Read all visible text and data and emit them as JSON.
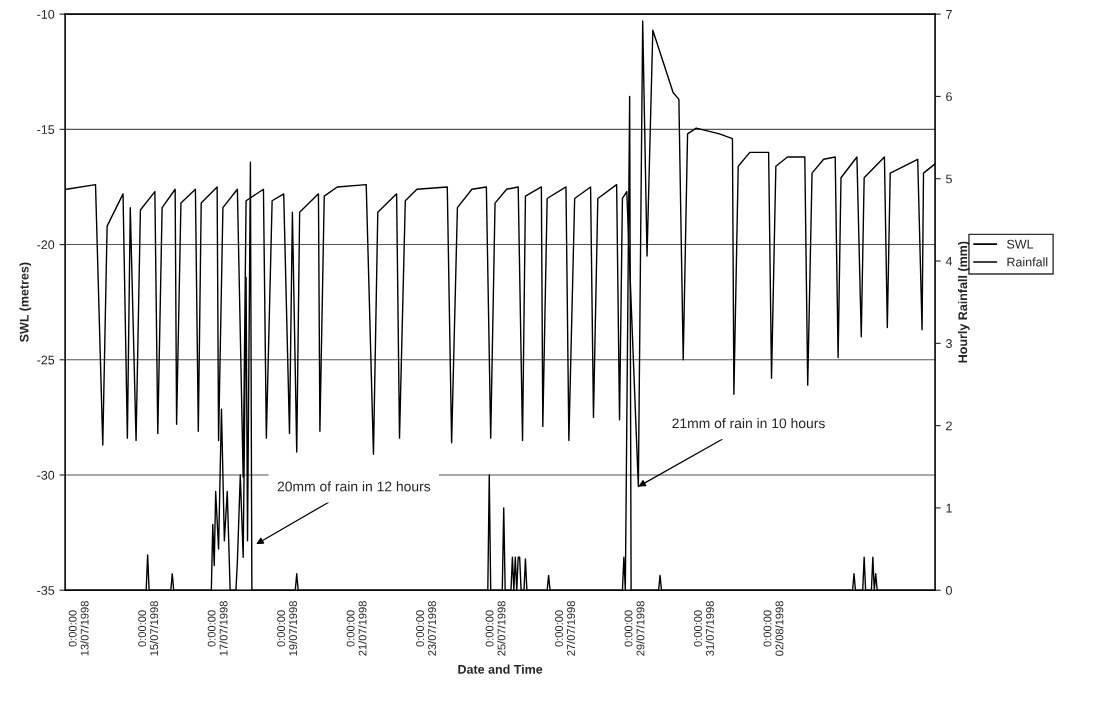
{
  "chart_data": {
    "type": "line",
    "xlabel": "Date and Time",
    "ylabel": "SWL (metres)",
    "y2label": "Hourly Rainfall (mm)",
    "xlim": [
      "1998-07-12T14:00",
      "1998-08-06T15:00"
    ],
    "xticks": [
      {
        "value": "1998-07-13",
        "label": "0:00:00\n13/07/1998"
      },
      {
        "value": "1998-07-15",
        "label": "0:00:00\n15/07/1998"
      },
      {
        "value": "1998-07-17",
        "label": "0:00:00\n17/07/1998"
      },
      {
        "value": "1998-07-19",
        "label": "0:00:00\n19/07/1998"
      },
      {
        "value": "1998-07-21",
        "label": "0:00:00\n21/07/1998"
      },
      {
        "value": "1998-07-23",
        "label": "0:00:00\n23/07/1998"
      },
      {
        "value": "1998-07-25",
        "label": "0:00:00\n25/07/1998"
      },
      {
        "value": "1998-07-27",
        "label": "0:00:00\n27/07/1998"
      },
      {
        "value": "1998-07-29",
        "label": "0:00:00\n29/07/1998"
      },
      {
        "value": "1998-07-31",
        "label": "0:00:00\n31/07/1998"
      },
      {
        "value": "1998-08-02",
        "label": "0:00:00\n02/08/1998"
      }
    ],
    "ylim": [
      -35,
      -10
    ],
    "yticks": [
      -35,
      -30,
      -25,
      -20,
      -15,
      -10
    ],
    "y2lim": [
      0,
      7
    ],
    "y2ticks": [
      0,
      1,
      2,
      3,
      4,
      5,
      6,
      7
    ],
    "grid": "y",
    "legend": "right",
    "line_style": "solid",
    "marker": "none",
    "series": [
      {
        "name": "SWL",
        "color": "#000000",
        "x": [
          "1998-07-12T15:00",
          "1998-07-13T11:00",
          "1998-07-13T16:00",
          "1998-07-13T19:00",
          "1998-07-14T06:00",
          "1998-07-14T09:00",
          "1998-07-14T11:00",
          "1998-07-14T15:00",
          "1998-07-14T18:00",
          "1998-07-15T04:00",
          "1998-07-15T06:00",
          "1998-07-15T09:00",
          "1998-07-15T18:00",
          "1998-07-15T19:00",
          "1998-07-15T22:00",
          "1998-07-16T08:00",
          "1998-07-16T10:00",
          "1998-07-16T12:00",
          "1998-07-16T23:00",
          "1998-07-17T00:00",
          "1998-07-17T03:00",
          "1998-07-17T13:00",
          "1998-07-17T17:00",
          "1998-07-17T19:00",
          "1998-07-18T07:00",
          "1998-07-18T09:00",
          "1998-07-18T13:00",
          "1998-07-18T21:00",
          "1998-07-19T01:00",
          "1998-07-19T03:00",
          "1998-07-19T06:00",
          "1998-07-19T08:00",
          "1998-07-19T21:00",
          "1998-07-19T22:00",
          "1998-07-20T01:00",
          "1998-07-20T10:00",
          "1998-07-21T06:00",
          "1998-07-21T11:00",
          "1998-07-21T14:00",
          "1998-07-22T03:00",
          "1998-07-22T05:00",
          "1998-07-22T09:00",
          "1998-07-22T17:00",
          "1998-07-23T14:00",
          "1998-07-23T17:00",
          "1998-07-23T21:00",
          "1998-07-24T07:00",
          "1998-07-24T17:00",
          "1998-07-24T20:00",
          "1998-07-24T23:00",
          "1998-07-25T07:00",
          "1998-07-25T15:00",
          "1998-07-25T18:00",
          "1998-07-25T20:00",
          "1998-07-26T07:00",
          "1998-07-26T08:00",
          "1998-07-26T11:00",
          "1998-07-27T00:00",
          "1998-07-27T02:00",
          "1998-07-27T06:00",
          "1998-07-27T17:00",
          "1998-07-27T19:00",
          "1998-07-27T22:00",
          "1998-07-28T11:00",
          "1998-07-28T13:00",
          "1998-07-28T15:00",
          "1998-07-28T18:00",
          "1998-07-29T02:00",
          "1998-07-29T05:00",
          "1998-07-29T08:00",
          "1998-07-29T12:00",
          "1998-07-30T02:00",
          "1998-07-30T06:00",
          "1998-07-30T09:00",
          "1998-07-30T12:00",
          "1998-07-30T18:00",
          "1998-07-31T10:00",
          "1998-07-31T19:00",
          "1998-07-31T20:00",
          "1998-07-31T23:00",
          "1998-08-01T07:00",
          "1998-08-01T20:00",
          "1998-08-01T22:00",
          "1998-08-02T01:00",
          "1998-08-02T09:00",
          "1998-08-02T21:00",
          "1998-08-02T23:00",
          "1998-08-03T02:00",
          "1998-08-03T10:00",
          "1998-08-03T18:00",
          "1998-08-03T20:00",
          "1998-08-03T22:00",
          "1998-08-04T09:00",
          "1998-08-04T12:00",
          "1998-08-04T14:00",
          "1998-08-05T04:00",
          "1998-08-05T06:00",
          "1998-08-05T08:00",
          "1998-08-06T03:00",
          "1998-08-06T06:00",
          "1998-08-06T07:00",
          "1998-08-06T15:00"
        ],
        "values": [
          -17.6,
          -17.4,
          -28.7,
          -19.2,
          -17.8,
          -28.4,
          -18.4,
          -28.5,
          -18.5,
          -17.7,
          -28.2,
          -18.4,
          -17.6,
          -27.8,
          -18.2,
          -17.6,
          -28.1,
          -18.2,
          -17.5,
          -28.5,
          -18.4,
          -17.6,
          -30.1,
          -18.1,
          -17.6,
          -28.4,
          -18.1,
          -17.8,
          -28.2,
          -18.6,
          -29.0,
          -18.6,
          -17.8,
          -28.1,
          -17.9,
          -17.5,
          -17.4,
          -29.1,
          -18.6,
          -17.8,
          -28.4,
          -18.1,
          -17.6,
          -17.5,
          -28.6,
          -18.4,
          -17.6,
          -17.5,
          -28.4,
          -18.2,
          -17.6,
          -17.5,
          -28.5,
          -17.9,
          -17.5,
          -27.9,
          -18.0,
          -17.5,
          -28.5,
          -18.0,
          -17.5,
          -27.5,
          -18.0,
          -17.4,
          -27.6,
          -18.0,
          -17.7,
          -30.5,
          -10.3,
          -20.5,
          -10.7,
          -13.4,
          -13.7,
          -25.0,
          -15.2,
          -14.95,
          -15.2,
          -15.4,
          -26.5,
          -16.6,
          -16.0,
          -16.0,
          -25.8,
          -16.6,
          -16.2,
          -16.2,
          -26.1,
          -16.9,
          -16.3,
          -16.2,
          -24.9,
          -17.1,
          -16.2,
          -24.0,
          -17.1,
          -16.2,
          -23.6,
          -16.9,
          -16.3,
          -23.7,
          -16.9,
          -16.5
        ]
      },
      {
        "name": "Rainfall",
        "color": "#000000",
        "axis": "y2",
        "x": [
          "1998-07-12T14:00",
          "1998-07-14T22:00",
          "1998-07-14T23:00",
          "1998-07-15T00:00",
          "1998-07-15T15:00",
          "1998-07-15T16:00",
          "1998-07-15T17:00",
          "1998-07-16T19:00",
          "1998-07-16T20:00",
          "1998-07-16T21:00",
          "1998-07-16T22:00",
          "1998-07-17T00:00",
          "1998-07-17T02:00",
          "1998-07-17T04:00",
          "1998-07-17T06:00",
          "1998-07-17T08:00",
          "1998-07-17T12:00",
          "1998-07-17T13:00",
          "1998-07-17T15:00",
          "1998-07-17T17:00",
          "1998-07-17T19:00",
          "1998-07-17T20:00",
          "1998-07-17T22:00",
          "1998-07-17T23:00",
          "1998-07-19T05:00",
          "1998-07-19T06:00",
          "1998-07-19T07:00",
          "1998-07-24T18:00",
          "1998-07-24T19:00",
          "1998-07-24T20:00",
          "1998-07-25T04:00",
          "1998-07-25T05:00",
          "1998-07-25T06:00",
          "1998-07-25T10:00",
          "1998-07-25T11:00",
          "1998-07-25T12:00",
          "1998-07-25T13:00",
          "1998-07-25T14:00",
          "1998-07-25T15:00",
          "1998-07-25T16:00",
          "1998-07-25T17:00",
          "1998-07-25T19:00",
          "1998-07-25T20:00",
          "1998-07-25T21:00",
          "1998-07-26T11:00",
          "1998-07-26T12:00",
          "1998-07-26T13:00",
          "1998-07-28T15:00",
          "1998-07-28T16:00",
          "1998-07-28T17:00",
          "1998-07-28T20:00",
          "1998-07-28T21:00",
          "1998-07-29T16:00",
          "1998-07-29T17:00",
          "1998-07-29T18:00",
          "1998-08-04T06:00",
          "1998-08-04T07:00",
          "1998-08-04T08:00",
          "1998-08-04T13:00",
          "1998-08-04T14:00",
          "1998-08-04T15:00",
          "1998-08-04T19:00",
          "1998-08-04T20:00",
          "1998-08-04T21:00",
          "1998-08-04T22:00",
          "1998-08-04T23:00",
          "1998-08-06T15:00"
        ],
        "values": [
          0,
          0,
          0.43,
          0,
          0,
          0.2,
          0,
          0,
          0.8,
          0.3,
          1.2,
          0.5,
          2.2,
          0.6,
          1.2,
          0,
          0,
          0.35,
          1.4,
          0.4,
          3.8,
          0.6,
          5.2,
          0,
          0,
          0.2,
          0,
          0,
          1.4,
          0,
          0,
          1.0,
          0,
          0,
          0.4,
          0,
          0.4,
          0,
          0.4,
          0.4,
          0,
          0,
          0.38,
          0,
          0,
          0.18,
          0,
          0,
          0.4,
          0,
          6.0,
          0,
          0,
          0.18,
          0,
          0,
          0.2,
          0,
          0,
          0.4,
          0,
          0,
          0.4,
          0,
          0.2,
          0,
          0
        ]
      }
    ],
    "annotations": [
      {
        "text": "20mm of rain in 12 hours",
        "x": "1998-07-18T02:00",
        "y": -33.0
      },
      {
        "text": "21mm of rain in 10 hours",
        "x": "1998-07-29T02:00",
        "y": -30.5
      }
    ]
  }
}
